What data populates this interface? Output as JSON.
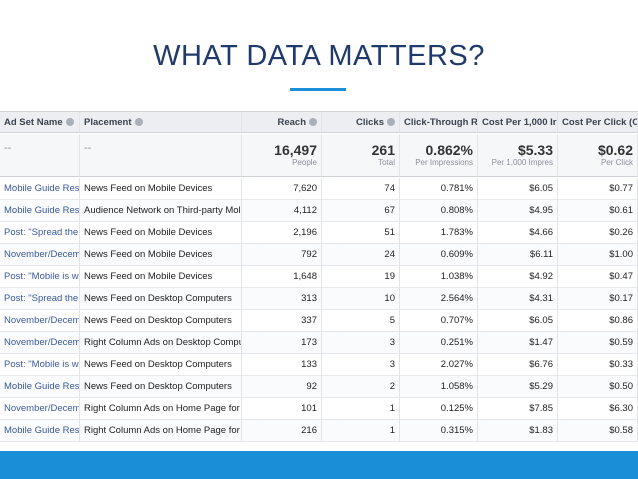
{
  "title": "WHAT DATA MATTERS?",
  "table": {
    "headers": [
      "Ad Set Name",
      "Placement",
      "Reach",
      "Clicks",
      "Click-Through R",
      "Cost Per 1,000 Ir",
      "Cost Per Click (Cl"
    ],
    "summary": [
      [
        "--"
      ],
      [
        "--"
      ],
      [
        "16,497",
        "People"
      ],
      [
        "261",
        "Total"
      ],
      [
        "0.862%",
        "Per Impressions"
      ],
      [
        "$5.33",
        "Per 1,000 Impres"
      ],
      [
        "$0.62",
        "Per Click"
      ]
    ],
    "rows": [
      [
        "Mobile Guide Res",
        "News Feed on Mobile Devices",
        "7,620",
        "74",
        "0.781%",
        "$6.05",
        "$0.77"
      ],
      [
        "Mobile Guide Res",
        "Audience Network on Third-party Mol",
        "4,112",
        "67",
        "0.808%",
        "$4.95",
        "$0.61"
      ],
      [
        "Post: \"Spread the",
        "News Feed on Mobile Devices",
        "2,196",
        "51",
        "1.783%",
        "$4.66",
        "$0.26"
      ],
      [
        "November/Decem",
        "News Feed on Mobile Devices",
        "792",
        "24",
        "0.609%",
        "$6.11",
        "$1.00"
      ],
      [
        "Post: \"Mobile is w",
        "News Feed on Mobile Devices",
        "1,648",
        "19",
        "1.038%",
        "$4.92",
        "$0.47"
      ],
      [
        "Post: \"Spread the",
        "News Feed on Desktop Computers",
        "313",
        "10",
        "2.564%",
        "$4.31",
        "$0.17"
      ],
      [
        "November/Decem",
        "News Feed on Desktop Computers",
        "337",
        "5",
        "0.707%",
        "$6.05",
        "$0.86"
      ],
      [
        "November/Decem",
        "Right Column Ads on Desktop Compu",
        "173",
        "3",
        "0.251%",
        "$1.47",
        "$0.59"
      ],
      [
        "Post: \"Mobile is w",
        "News Feed on Desktop Computers",
        "133",
        "3",
        "2.027%",
        "$6.76",
        "$0.33"
      ],
      [
        "Mobile Guide Res",
        "News Feed on Desktop Computers",
        "92",
        "2",
        "1.058%",
        "$5.29",
        "$0.50"
      ],
      [
        "November/Decem",
        "Right Column Ads on Home Page for I",
        "101",
        "1",
        "0.125%",
        "$7.85",
        "$6.30"
      ],
      [
        "Mobile Guide Res",
        "Right Column Ads on Home Page for I",
        "216",
        "1",
        "0.315%",
        "$1.83",
        "$0.58"
      ]
    ]
  }
}
